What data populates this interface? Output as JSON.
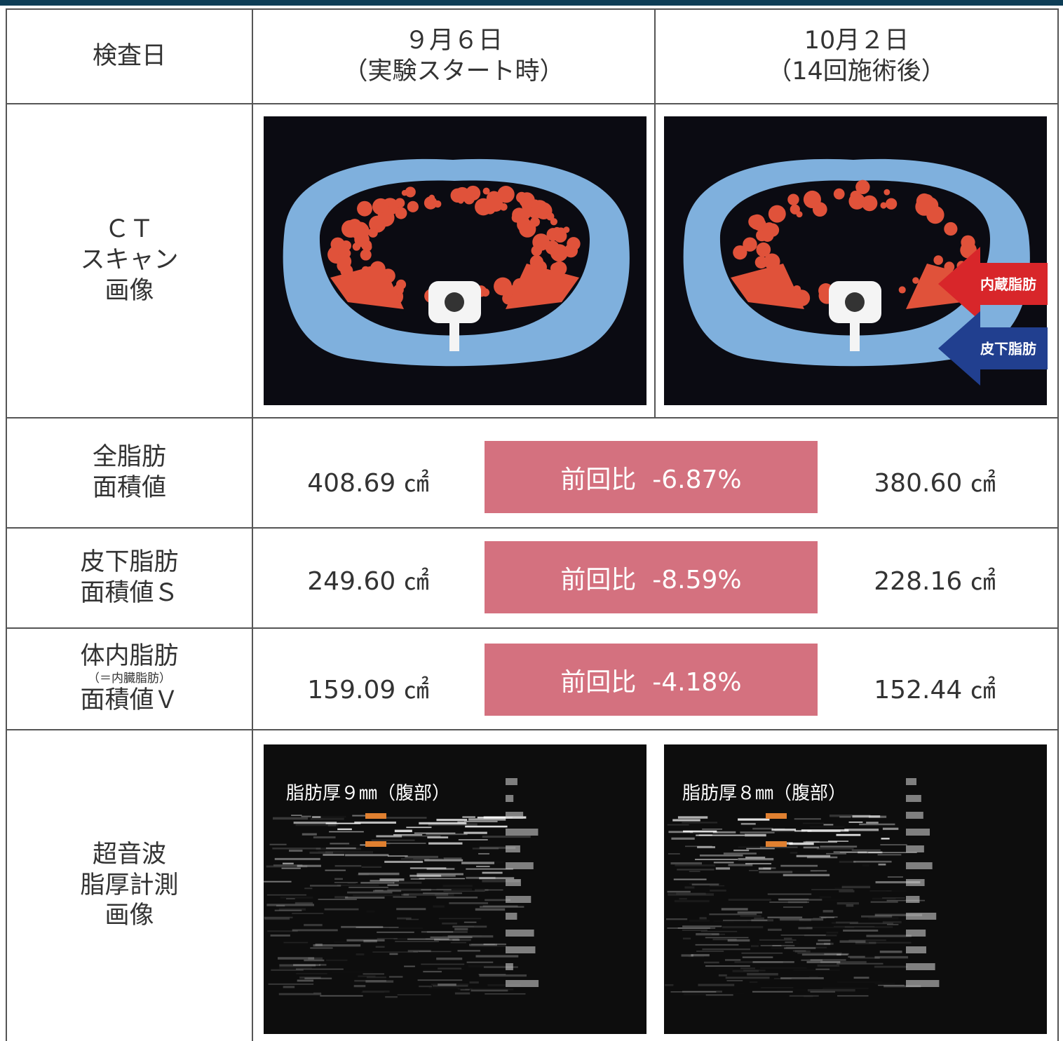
{
  "table": {
    "header": {
      "label": "検査日",
      "before": [
        "９月６日",
        "（実験スタート時）"
      ],
      "after": [
        "10月２日",
        "（14回施術後）"
      ]
    },
    "ct": {
      "label": [
        "ＣＴ",
        "スキャン",
        "画像"
      ],
      "annotations": [
        "内蔵脂肪",
        "皮下脂肪"
      ]
    },
    "measurements": [
      {
        "label": [
          "全脂肪",
          "面積値"
        ],
        "before": "408.69 ㎠",
        "change": "前回比  -6.87%",
        "after": "380.60 ㎠"
      },
      {
        "label": [
          "皮下脂肪",
          "面積値Ｓ"
        ],
        "before": "249.60 ㎠",
        "change": "前回比  -8.59%",
        "after": "228.16 ㎠"
      },
      {
        "label": [
          "体内脂肪",
          "（＝内臓脂肪）",
          "面積値Ｖ"
        ],
        "before": "159.09 ㎠",
        "change": "前回比  -4.18%",
        "after": "152.44 ㎠"
      }
    ],
    "ultrasound": {
      "label": [
        "超音波",
        "脂厚計測",
        "画像"
      ],
      "before": "脂肪厚９㎜（腹部）",
      "after": "脂肪厚８㎜（腹部）"
    }
  }
}
